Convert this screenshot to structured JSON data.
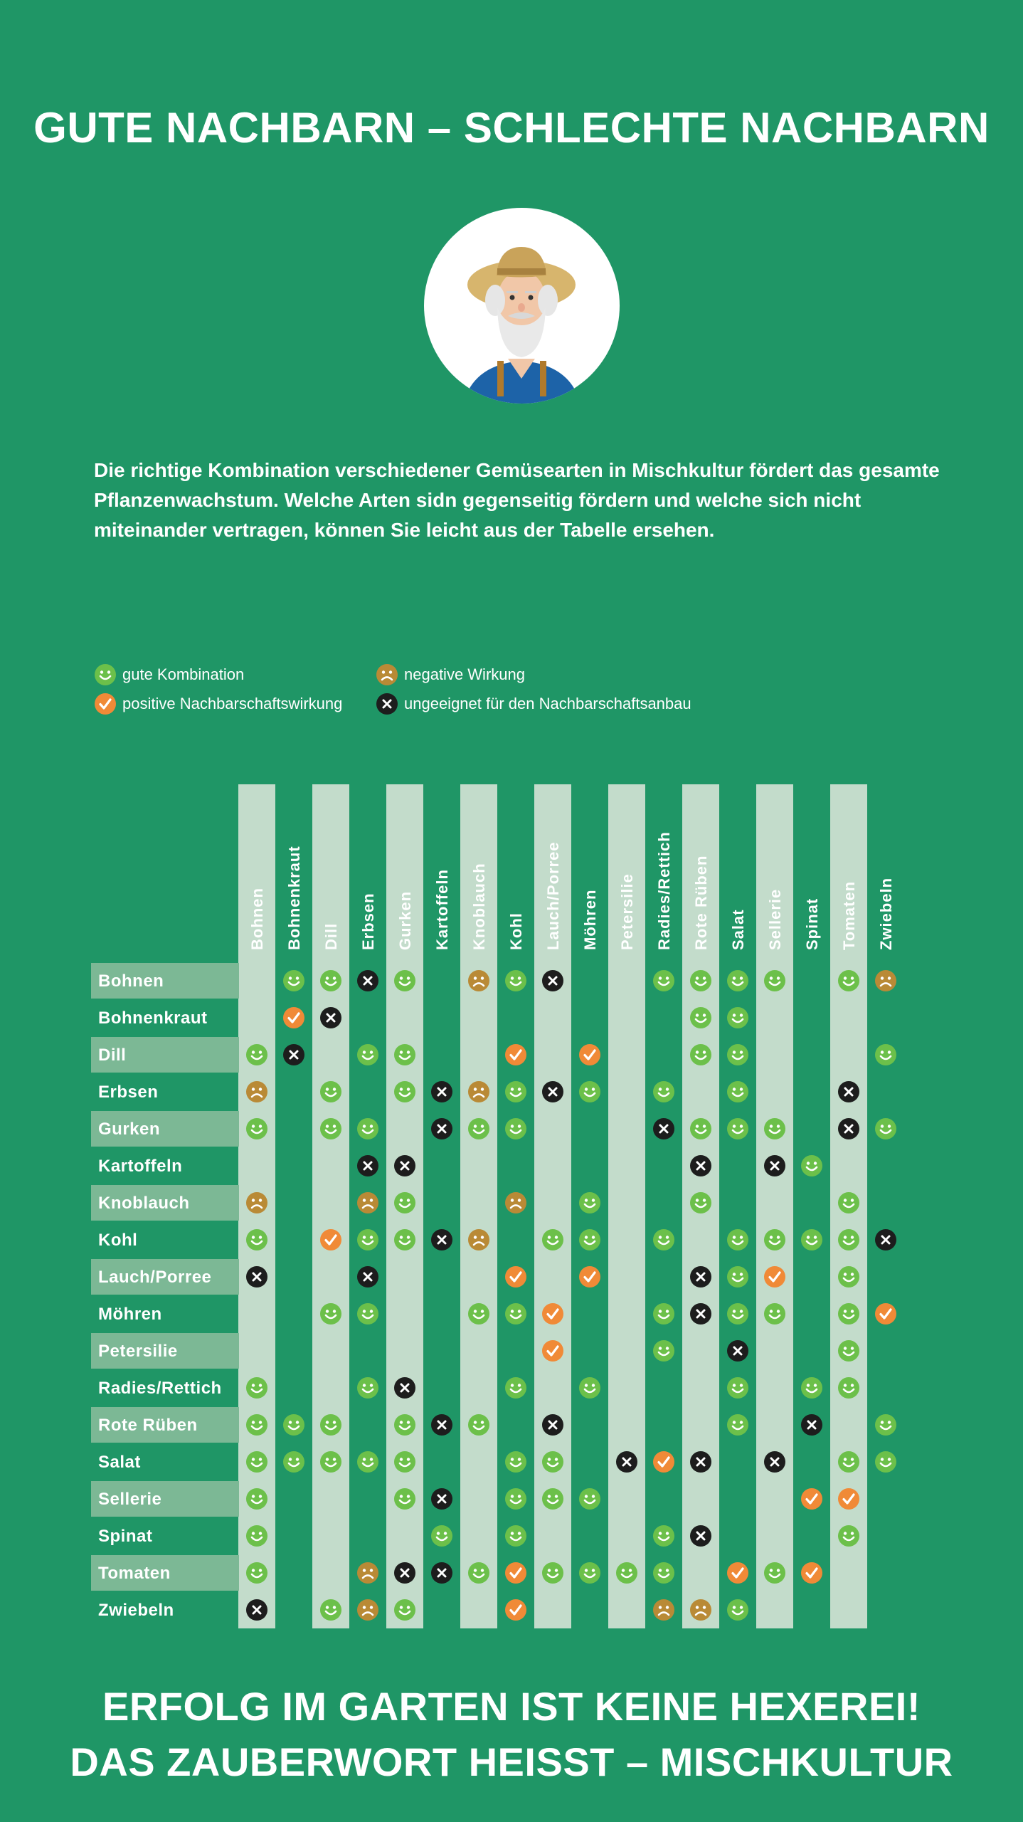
{
  "title": "GUTE NACHBARN – SCHLECHTE NACHBARN",
  "intro": "Die richtige Kombination verschiedener Gemüsearten in Mischkultur fördert das gesamte Pflanzenwachstum. Welche Arten sidn gegenseitig fördern und welche sich nicht miteinander vertragen, können Sie leicht aus der Tabelle ersehen.",
  "legend": {
    "good": "gute Kombination",
    "positive": "positive Nachbarschaftswirkung",
    "negative": "negative Wirkung",
    "unsuitable": "ungeeignet für den Nachbarschaftsanbau"
  },
  "symbol_colors": {
    "good": "#6cc04a",
    "positive": "#f08a37",
    "negative": "#b98a36",
    "unsuitable": "#1d1d1d"
  },
  "columns": [
    "Bohnen",
    "Bohnenkraut",
    "Dill",
    "Erbsen",
    "Gurken",
    "Kartoffeln",
    "Knoblauch",
    "Kohl",
    "Lauch/Porree",
    "Möhren",
    "Petersilie",
    "Radies/Rettich",
    "Rote Rüben",
    "Salat",
    "Sellerie",
    "Spinat",
    "Tomaten",
    "Zwiebeln"
  ],
  "rows": [
    {
      "label": "Bohnen",
      "cells": {
        "1": "G",
        "2": "G",
        "3": "X",
        "4": "G",
        "6": "N",
        "7": "G",
        "8": "X",
        "11": "G",
        "12": "G",
        "13": "G",
        "14": "G",
        "16": "G",
        "17": "N"
      }
    },
    {
      "label": "Bohnenkraut",
      "cells": {
        "1": "P",
        "2": "X",
        "12": "G",
        "13": "G"
      }
    },
    {
      "label": "Dill",
      "cells": {
        "0": "G",
        "1": "X",
        "3": "G",
        "4": "G",
        "7": "P",
        "9": "P",
        "12": "G",
        "13": "G",
        "17": "G"
      }
    },
    {
      "label": "Erbsen",
      "cells": {
        "0": "N",
        "2": "G",
        "4": "G",
        "5": "X",
        "6": "N",
        "7": "G",
        "8": "X",
        "9": "G",
        "11": "G",
        "13": "G",
        "16": "X"
      }
    },
    {
      "label": "Gurken",
      "cells": {
        "0": "G",
        "2": "G",
        "3": "G",
        "5": "X",
        "6": "G",
        "7": "G",
        "11": "X",
        "12": "G",
        "13": "G",
        "14": "G",
        "16": "X",
        "17": "G"
      }
    },
    {
      "label": "Kartoffeln",
      "cells": {
        "3": "X",
        "4": "X",
        "12": "X",
        "14": "X",
        "15": "G"
      }
    },
    {
      "label": "Knoblauch",
      "cells": {
        "0": "N",
        "3": "N",
        "4": "G",
        "7": "N",
        "9": "G",
        "12": "G",
        "16": "G"
      }
    },
    {
      "label": "Kohl",
      "cells": {
        "0": "G",
        "2": "P",
        "3": "G",
        "4": "G",
        "5": "X",
        "6": "N",
        "8": "G",
        "9": "G",
        "11": "G",
        "13": "G",
        "14": "G",
        "15": "G",
        "16": "G",
        "17": "X"
      }
    },
    {
      "label": "Lauch/Porree",
      "cells": {
        "0": "X",
        "3": "X",
        "7": "P",
        "9": "P",
        "12": "X",
        "13": "G",
        "14": "P",
        "16": "G"
      }
    },
    {
      "label": "Möhren",
      "cells": {
        "2": "G",
        "3": "G",
        "6": "G",
        "7": "G",
        "8": "P",
        "11": "G",
        "12": "X",
        "13": "G",
        "14": "G",
        "16": "G",
        "17": "P"
      }
    },
    {
      "label": "Petersilie",
      "cells": {
        "8": "P",
        "11": "G",
        "13": "X",
        "16": "G"
      }
    },
    {
      "label": "Radies/Rettich",
      "cells": {
        "0": "G",
        "3": "G",
        "4": "X",
        "7": "G",
        "9": "G",
        "13": "G",
        "15": "G",
        "16": "G"
      }
    },
    {
      "label": "Rote Rüben",
      "cells": {
        "0": "G",
        "1": "G",
        "2": "G",
        "4": "G",
        "5": "X",
        "6": "G",
        "8": "X",
        "13": "G",
        "15": "X",
        "17": "G"
      }
    },
    {
      "label": "Salat",
      "cells": {
        "0": "G",
        "1": "G",
        "2": "G",
        "3": "G",
        "4": "G",
        "7": "G",
        "8": "G",
        "10": "X",
        "11": "P",
        "12": "X",
        "14": "X",
        "16": "G",
        "17": "G"
      }
    },
    {
      "label": "Sellerie",
      "cells": {
        "0": "G",
        "4": "G",
        "5": "X",
        "7": "G",
        "8": "G",
        "9": "G",
        "15": "P",
        "16": "P"
      }
    },
    {
      "label": "Spinat",
      "cells": {
        "0": "G",
        "5": "G",
        "7": "G",
        "11": "G",
        "12": "X",
        "16": "G"
      }
    },
    {
      "label": "Tomaten",
      "cells": {
        "0": "G",
        "3": "N",
        "4": "X",
        "5": "X",
        "6": "G",
        "7": "P",
        "8": "G",
        "9": "G",
        "10": "G",
        "11": "G",
        "13": "P",
        "14": "G",
        "15": "P"
      }
    },
    {
      "label": "Zwiebeln",
      "cells": {
        "0": "X",
        "2": "G",
        "3": "N",
        "4": "G",
        "7": "P",
        "11": "N",
        "12": "N",
        "13": "G"
      }
    }
  ],
  "footer_line1": "ERFOLG IM GARTEN IST KEINE HEXEREI!",
  "footer_line2": "DAS ZAUBERWORT HEISST – MISCHKULTUR"
}
